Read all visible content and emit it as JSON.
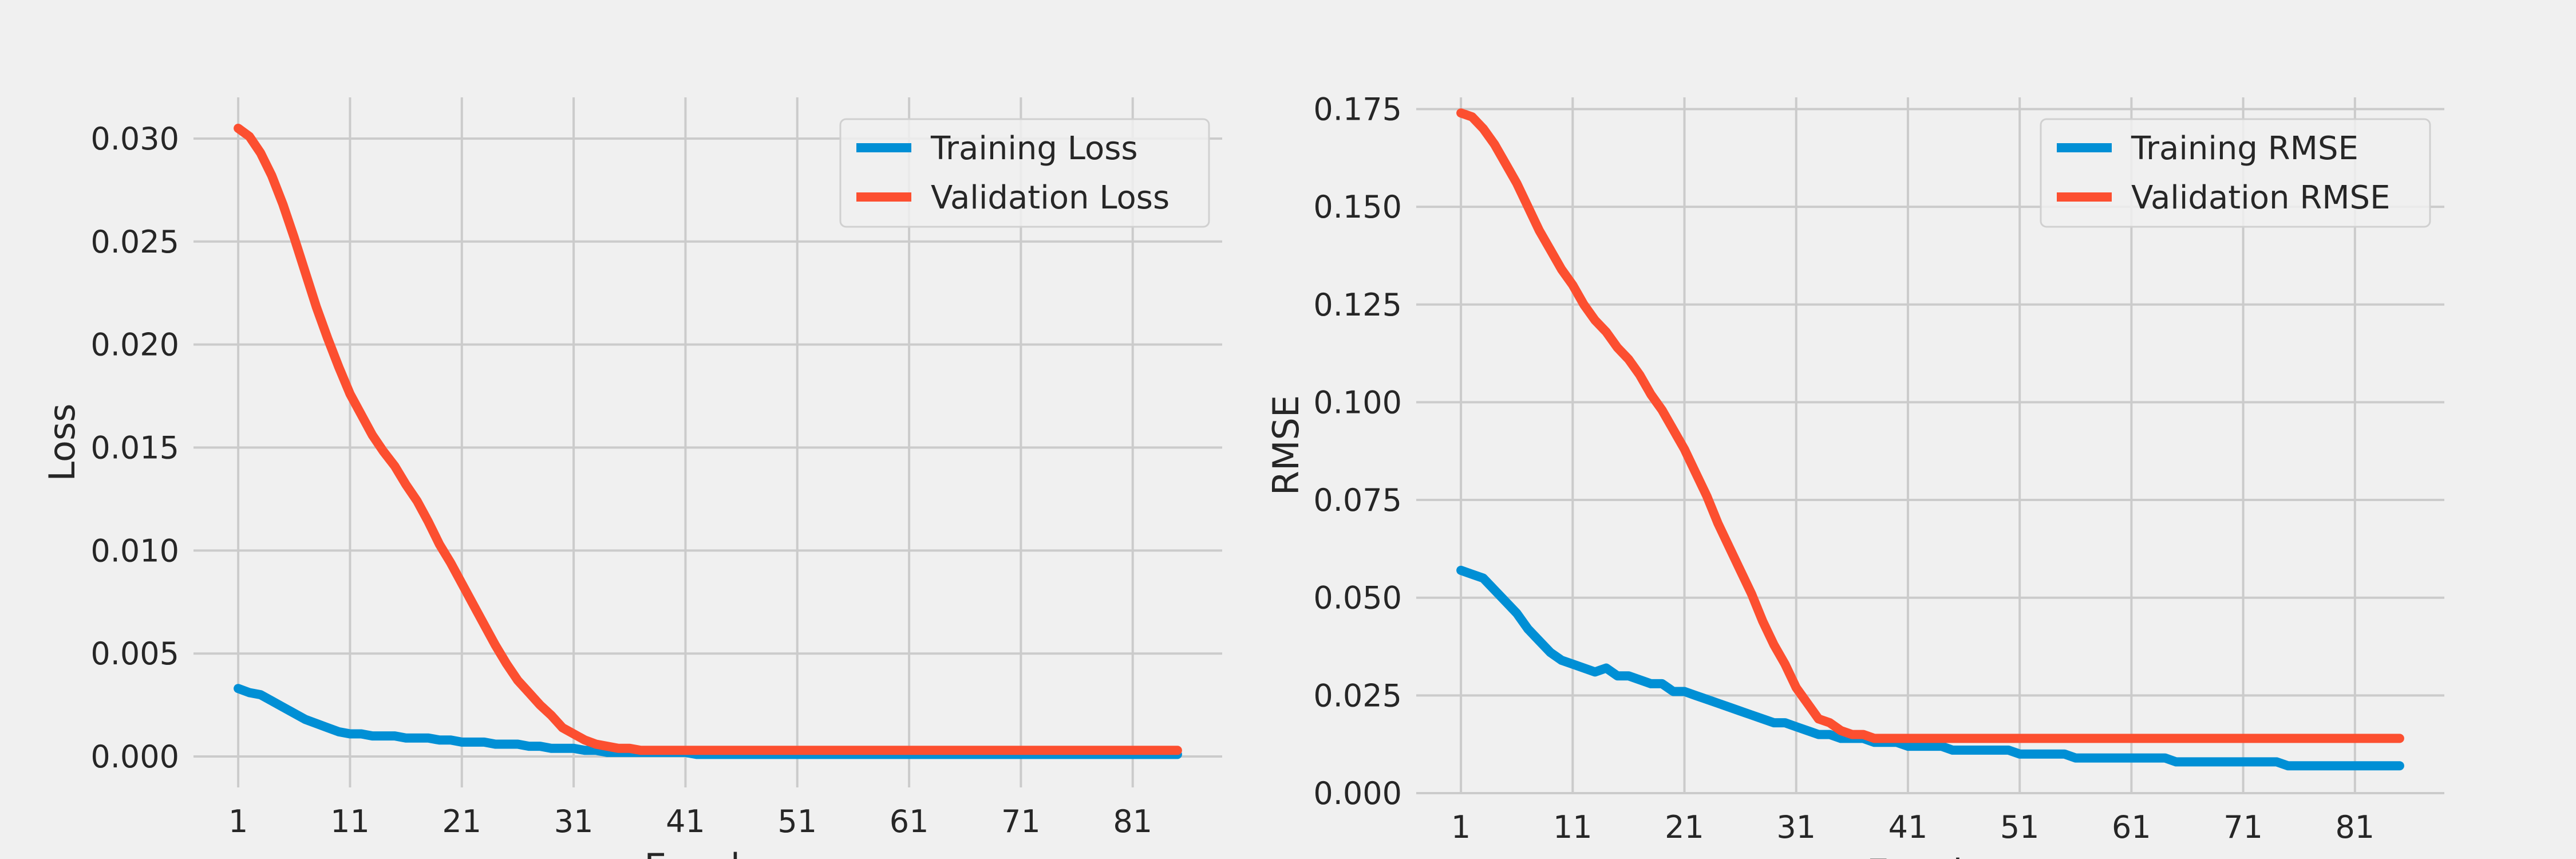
{
  "chart_data": [
    {
      "type": "line",
      "title": "",
      "xlabel": "Epochs",
      "ylabel": "Loss",
      "xlim": [
        -3,
        89
      ],
      "ylim": [
        -0.0015,
        0.032
      ],
      "xticks": [
        1,
        11,
        21,
        31,
        41,
        51,
        61,
        71,
        81
      ],
      "yticks": [
        0.0,
        0.005,
        0.01,
        0.015,
        0.02,
        0.025,
        0.03
      ],
      "ytick_labels": [
        "0.000",
        "0.005",
        "0.010",
        "0.015",
        "0.020",
        "0.025",
        "0.030"
      ],
      "grid": true,
      "legend_position": "top-right",
      "x": [
        1,
        2,
        3,
        4,
        5,
        6,
        7,
        8,
        9,
        10,
        11,
        12,
        13,
        14,
        15,
        16,
        17,
        18,
        19,
        20,
        21,
        22,
        23,
        24,
        25,
        26,
        27,
        28,
        29,
        30,
        31,
        32,
        33,
        34,
        35,
        36,
        37,
        38,
        39,
        40,
        41,
        42,
        43,
        44,
        45,
        46,
        47,
        48,
        49,
        50,
        51,
        52,
        53,
        54,
        55,
        56,
        57,
        58,
        59,
        60,
        61,
        62,
        63,
        64,
        65,
        66,
        67,
        68,
        69,
        70,
        71,
        72,
        73,
        74,
        75,
        76,
        77,
        78,
        79,
        80,
        81,
        82,
        83,
        84,
        85
      ],
      "series": [
        {
          "name": "Training Loss",
          "color": "#008fd5",
          "values": [
            0.0033,
            0.0031,
            0.003,
            0.0027,
            0.0024,
            0.0021,
            0.0018,
            0.0016,
            0.0014,
            0.0012,
            0.0011,
            0.0011,
            0.001,
            0.001,
            0.001,
            0.0009,
            0.0009,
            0.0009,
            0.0008,
            0.0008,
            0.0007,
            0.0007,
            0.0007,
            0.0006,
            0.0006,
            0.0006,
            0.0005,
            0.0005,
            0.0004,
            0.0004,
            0.0004,
            0.0003,
            0.0003,
            0.0002,
            0.0002,
            0.0002,
            0.0002,
            0.0002,
            0.0002,
            0.0002,
            0.0002,
            0.0001,
            0.0001,
            0.0001,
            0.0001,
            0.0001,
            0.0001,
            0.0001,
            0.0001,
            0.0001,
            0.0001,
            0.0001,
            0.0001,
            0.0001,
            0.0001,
            0.0001,
            0.0001,
            0.0001,
            0.0001,
            0.0001,
            0.0001,
            0.0001,
            0.0001,
            0.0001,
            0.0001,
            0.0001,
            0.0001,
            0.0001,
            0.0001,
            0.0001,
            0.0001,
            0.0001,
            0.0001,
            0.0001,
            0.0001,
            0.0001,
            0.0001,
            0.0001,
            0.0001,
            0.0001,
            0.0001,
            0.0001,
            0.0001,
            0.0001,
            0.0001
          ]
        },
        {
          "name": "Validation Loss",
          "color": "#fc4f30",
          "values": [
            0.0305,
            0.0301,
            0.0293,
            0.0282,
            0.0268,
            0.0252,
            0.0235,
            0.0218,
            0.0203,
            0.0189,
            0.0176,
            0.0166,
            0.0156,
            0.0148,
            0.0141,
            0.0132,
            0.0124,
            0.0114,
            0.0103,
            0.0094,
            0.0084,
            0.0074,
            0.0064,
            0.0054,
            0.0045,
            0.0037,
            0.0031,
            0.0025,
            0.002,
            0.0014,
            0.0011,
            0.0008,
            0.0006,
            0.0005,
            0.0004,
            0.0004,
            0.0003,
            0.0003,
            0.0003,
            0.0003,
            0.0003,
            0.0003,
            0.0003,
            0.0003,
            0.0003,
            0.0003,
            0.0003,
            0.0003,
            0.0003,
            0.0003,
            0.0003,
            0.0003,
            0.0003,
            0.0003,
            0.0003,
            0.0003,
            0.0003,
            0.0003,
            0.0003,
            0.0003,
            0.0003,
            0.0003,
            0.0003,
            0.0003,
            0.0003,
            0.0003,
            0.0003,
            0.0003,
            0.0003,
            0.0003,
            0.0003,
            0.0003,
            0.0003,
            0.0003,
            0.0003,
            0.0003,
            0.0003,
            0.0003,
            0.0003,
            0.0003,
            0.0003,
            0.0003,
            0.0003,
            0.0003,
            0.0003
          ]
        }
      ]
    },
    {
      "type": "line",
      "title": "",
      "xlabel": "Epochs",
      "ylabel": "RMSE",
      "xlim": [
        -3,
        89
      ],
      "ylim": [
        0.0,
        0.178
      ],
      "xticks": [
        1,
        11,
        21,
        31,
        41,
        51,
        61,
        71,
        81
      ],
      "yticks": [
        0.0,
        0.025,
        0.05,
        0.075,
        0.1,
        0.125,
        0.15,
        0.175
      ],
      "ytick_labels": [
        "0.000",
        "0.025",
        "0.050",
        "0.075",
        "0.100",
        "0.125",
        "0.150",
        "0.175"
      ],
      "grid": true,
      "legend_position": "top-right",
      "x": [
        1,
        2,
        3,
        4,
        5,
        6,
        7,
        8,
        9,
        10,
        11,
        12,
        13,
        14,
        15,
        16,
        17,
        18,
        19,
        20,
        21,
        22,
        23,
        24,
        25,
        26,
        27,
        28,
        29,
        30,
        31,
        32,
        33,
        34,
        35,
        36,
        37,
        38,
        39,
        40,
        41,
        42,
        43,
        44,
        45,
        46,
        47,
        48,
        49,
        50,
        51,
        52,
        53,
        54,
        55,
        56,
        57,
        58,
        59,
        60,
        61,
        62,
        63,
        64,
        65,
        66,
        67,
        68,
        69,
        70,
        71,
        72,
        73,
        74,
        75,
        76,
        77,
        78,
        79,
        80,
        81,
        82,
        83,
        84,
        85
      ],
      "series": [
        {
          "name": "Training RMSE",
          "color": "#008fd5",
          "values": [
            0.057,
            0.056,
            0.055,
            0.052,
            0.049,
            0.046,
            0.042,
            0.039,
            0.036,
            0.034,
            0.033,
            0.032,
            0.031,
            0.032,
            0.03,
            0.03,
            0.029,
            0.028,
            0.028,
            0.026,
            0.026,
            0.025,
            0.024,
            0.023,
            0.022,
            0.021,
            0.02,
            0.019,
            0.018,
            0.018,
            0.017,
            0.016,
            0.015,
            0.015,
            0.014,
            0.014,
            0.014,
            0.013,
            0.013,
            0.013,
            0.012,
            0.012,
            0.012,
            0.012,
            0.011,
            0.011,
            0.011,
            0.011,
            0.011,
            0.011,
            0.01,
            0.01,
            0.01,
            0.01,
            0.01,
            0.009,
            0.009,
            0.009,
            0.009,
            0.009,
            0.009,
            0.009,
            0.009,
            0.009,
            0.008,
            0.008,
            0.008,
            0.008,
            0.008,
            0.008,
            0.008,
            0.008,
            0.008,
            0.008,
            0.007,
            0.007,
            0.007,
            0.007,
            0.007,
            0.007,
            0.007,
            0.007,
            0.007,
            0.007,
            0.007
          ]
        },
        {
          "name": "Validation RMSE",
          "color": "#fc4f30",
          "values": [
            0.174,
            0.173,
            0.17,
            0.166,
            0.161,
            0.156,
            0.15,
            0.144,
            0.139,
            0.134,
            0.13,
            0.125,
            0.121,
            0.118,
            0.114,
            0.111,
            0.107,
            0.102,
            0.098,
            0.093,
            0.088,
            0.082,
            0.076,
            0.069,
            0.063,
            0.057,
            0.051,
            0.044,
            0.038,
            0.033,
            0.027,
            0.023,
            0.019,
            0.018,
            0.016,
            0.015,
            0.015,
            0.014,
            0.014,
            0.014,
            0.014,
            0.014,
            0.014,
            0.014,
            0.014,
            0.014,
            0.014,
            0.014,
            0.014,
            0.014,
            0.014,
            0.014,
            0.014,
            0.014,
            0.014,
            0.014,
            0.014,
            0.014,
            0.014,
            0.014,
            0.014,
            0.014,
            0.014,
            0.014,
            0.014,
            0.014,
            0.014,
            0.014,
            0.014,
            0.014,
            0.014,
            0.014,
            0.014,
            0.014,
            0.014,
            0.014,
            0.014,
            0.014,
            0.014,
            0.014,
            0.014,
            0.014,
            0.014,
            0.014,
            0.014
          ]
        }
      ]
    }
  ]
}
